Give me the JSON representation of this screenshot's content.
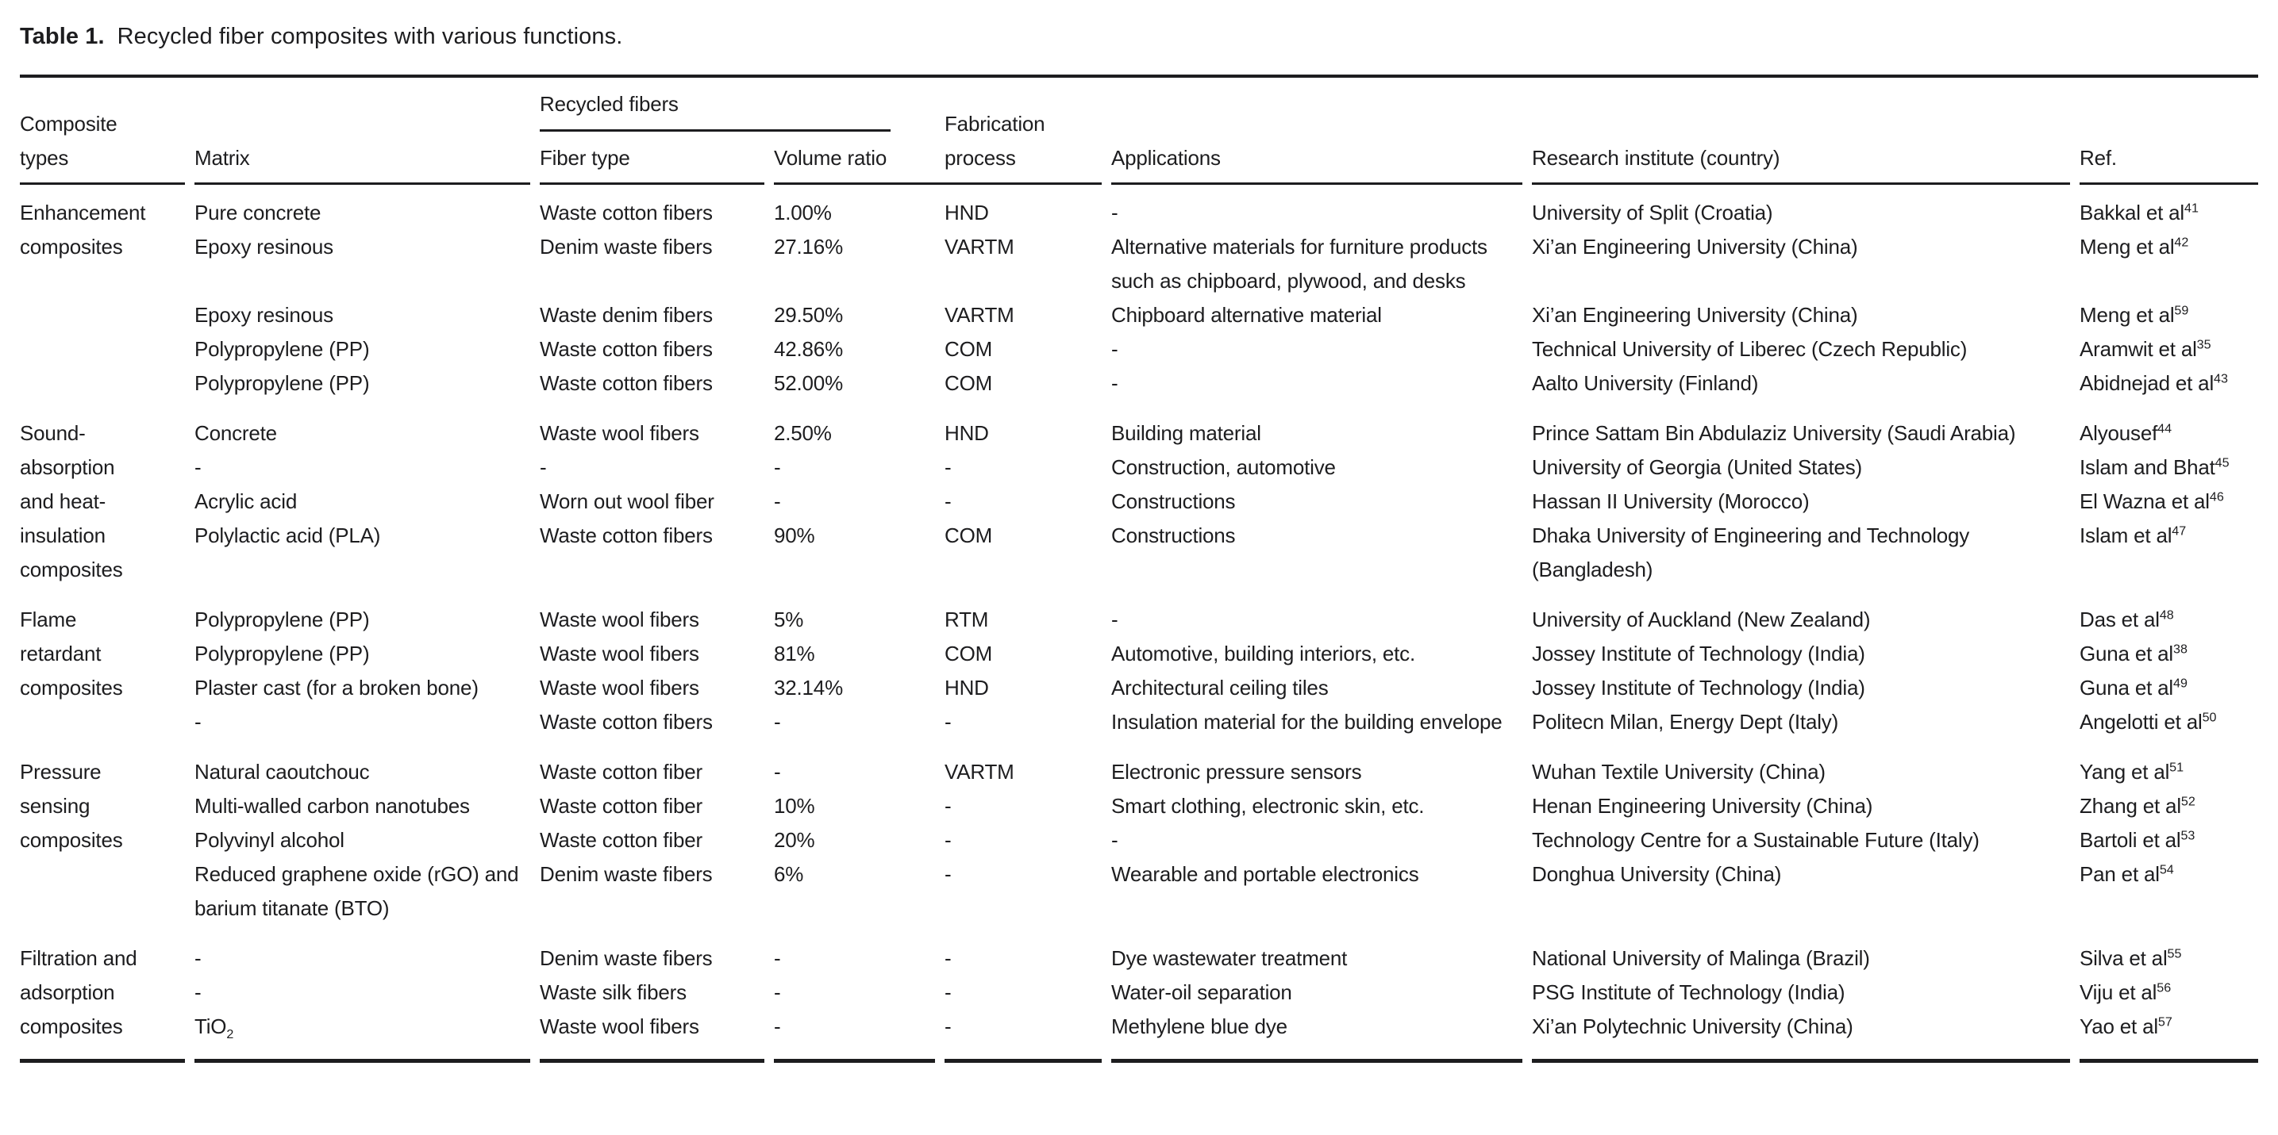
{
  "colors": {
    "text": "#1d1d1f",
    "background": "#ffffff",
    "rule": "#1d1d1f"
  },
  "title": {
    "label": "Table 1.",
    "text": "Recycled fiber composites with various functions."
  },
  "header": {
    "composite_types": "Composite\ntypes",
    "matrix": "Matrix",
    "recycled_fibers_group": "Recycled fibers",
    "fiber_type": "Fiber type",
    "volume_ratio": "Volume ratio",
    "fabrication_process": "Fabrication\nprocess",
    "applications": "Applications",
    "research_institute": "Research institute (country)",
    "ref": "Ref."
  },
  "table": {
    "sections": [
      {
        "label": "Enhancement\ncomposites",
        "rows": [
          {
            "matrix": "Pure concrete",
            "fiber": "Waste cotton fibers",
            "volume": "1.00%",
            "process": "HND",
            "applications": "-",
            "institute": "University of Split (Croatia)",
            "ref": "Bakkal et al",
            "ref_sup": "41"
          },
          {
            "matrix": "Epoxy resinous",
            "fiber": "Denim waste fibers",
            "volume": "27.16%",
            "process": "VARTM",
            "applications": "Alternative materials for furniture products such as chipboard, plywood, and desks",
            "institute": "Xi’an Engineering University (China)",
            "ref": "Meng et al",
            "ref_sup": "42"
          },
          {
            "matrix": "Epoxy resinous",
            "fiber": "Waste denim fibers",
            "volume": "29.50%",
            "process": "VARTM",
            "applications": "Chipboard alternative material",
            "institute": "Xi’an Engineering University (China)",
            "ref": "Meng et al",
            "ref_sup": "59"
          },
          {
            "matrix": "Polypropylene (PP)",
            "fiber": "Waste cotton fibers",
            "volume": "42.86%",
            "process": "COM",
            "applications": "-",
            "institute": "Technical University of Liberec (Czech Republic)",
            "ref": "Aramwit et al",
            "ref_sup": "35"
          },
          {
            "matrix": "Polypropylene (PP)",
            "fiber": "Waste cotton fibers",
            "volume": "52.00%",
            "process": "COM",
            "applications": "-",
            "institute": "Aalto University (Finland)",
            "ref": "Abidnejad et al",
            "ref_sup": "43"
          }
        ]
      },
      {
        "label": "Sound-\nabsorption\nand heat-\ninsulation\ncomposites",
        "rows": [
          {
            "matrix": "Concrete",
            "fiber": "Waste wool fibers",
            "volume": "2.50%",
            "process": "HND",
            "applications": "Building material",
            "institute": "Prince Sattam Bin Abdulaziz University (Saudi Arabia)",
            "ref": "Alyousef",
            "ref_sup": "44"
          },
          {
            "matrix": "-",
            "fiber": "-",
            "volume": "-",
            "process": "-",
            "applications": "Construction, automotive",
            "institute": "University of Georgia (United States)",
            "ref": "Islam and Bhat",
            "ref_sup": "45"
          },
          {
            "matrix": "Acrylic acid",
            "fiber": "Worn out wool fiber",
            "volume": "-",
            "process": "-",
            "applications": "Constructions",
            "institute": "Hassan II University (Morocco)",
            "ref": "El Wazna et al",
            "ref_sup": "46"
          },
          {
            "matrix": "Polylactic acid (PLA)",
            "fiber": "Waste cotton fibers",
            "volume": "90%",
            "process": "COM",
            "applications": "Constructions",
            "institute": "Dhaka University of Engineering and Technology (Bangladesh)",
            "ref": "Islam et al",
            "ref_sup": "47"
          }
        ]
      },
      {
        "label": "Flame\nretardant\ncomposites",
        "rows": [
          {
            "matrix": "Polypropylene (PP)",
            "fiber": "Waste wool fibers",
            "volume": "5%",
            "process": "RTM",
            "applications": "-",
            "institute": "University of Auckland (New Zealand)",
            "ref": "Das et al",
            "ref_sup": "48"
          },
          {
            "matrix": "Polypropylene (PP)",
            "fiber": "Waste wool fibers",
            "volume": "81%",
            "process": "COM",
            "applications": "Automotive, building interiors, etc.",
            "institute": "Jossey Institute of Technology (India)",
            "ref": "Guna et al",
            "ref_sup": "38"
          },
          {
            "matrix": "Plaster cast (for a broken bone)",
            "fiber": "Waste wool fibers",
            "volume": "32.14%",
            "process": "HND",
            "applications": "Architectural ceiling tiles",
            "institute": "Jossey Institute of Technology (India)",
            "ref": "Guna et al",
            "ref_sup": "49"
          },
          {
            "matrix": "-",
            "fiber": "Waste cotton fibers",
            "volume": "-",
            "process": "-",
            "applications": "Insulation material for the building envelope",
            "institute": "Politecn Milan, Energy Dept (Italy)",
            "ref": "Angelotti et al",
            "ref_sup": "50"
          }
        ]
      },
      {
        "label": "Pressure\nsensing\ncomposites",
        "rows": [
          {
            "matrix": "Natural caoutchouc",
            "fiber": "Waste cotton fiber",
            "volume": "-",
            "process": "VARTM",
            "applications": "Electronic pressure sensors",
            "institute": "Wuhan Textile University (China)",
            "ref": "Yang et al",
            "ref_sup": "51"
          },
          {
            "matrix": "Multi-walled carbon nanotubes",
            "fiber": "Waste cotton fiber",
            "volume": "10%",
            "process": "-",
            "applications": "Smart clothing, electronic skin, etc.",
            "institute": "Henan Engineering University (China)",
            "ref": "Zhang et al",
            "ref_sup": "52"
          },
          {
            "matrix": "Polyvinyl alcohol",
            "fiber": "Waste cotton fiber",
            "volume": "20%",
            "process": "-",
            "applications": "-",
            "institute": "Technology Centre for a Sustainable Future (Italy)",
            "ref": "Bartoli et al",
            "ref_sup": "53"
          },
          {
            "matrix": "Reduced graphene oxide (rGO) and barium titanate (BTO)",
            "fiber": "Denim waste fibers",
            "volume": "6%",
            "process": "-",
            "applications": "Wearable and portable electronics",
            "institute": "Donghua University (China)",
            "ref": "Pan et al",
            "ref_sup": "54"
          }
        ]
      },
      {
        "label": "Filtration and\nadsorption\ncomposites",
        "rows": [
          {
            "matrix": "-",
            "fiber": "Denim waste fibers",
            "volume": "-",
            "process": "-",
            "applications": "Dye wastewater treatment",
            "institute": "National University of Malinga (Brazil)",
            "ref": "Silva et al",
            "ref_sup": "55"
          },
          {
            "matrix": "-",
            "fiber": "Waste silk fibers",
            "volume": "-",
            "process": "-",
            "applications": "Water-oil separation",
            "institute": "PSG Institute of Technology (India)",
            "ref": "Viju et al",
            "ref_sup": "56"
          },
          {
            "matrix": "TiO",
            "matrix_sub": "2",
            "fiber": "Waste wool fibers",
            "volume": "-",
            "process": "-",
            "applications": "Methylene blue dye",
            "institute": "Xi’an Polytechnic University (China)",
            "ref": "Yao et al",
            "ref_sup": "57"
          }
        ]
      }
    ]
  }
}
